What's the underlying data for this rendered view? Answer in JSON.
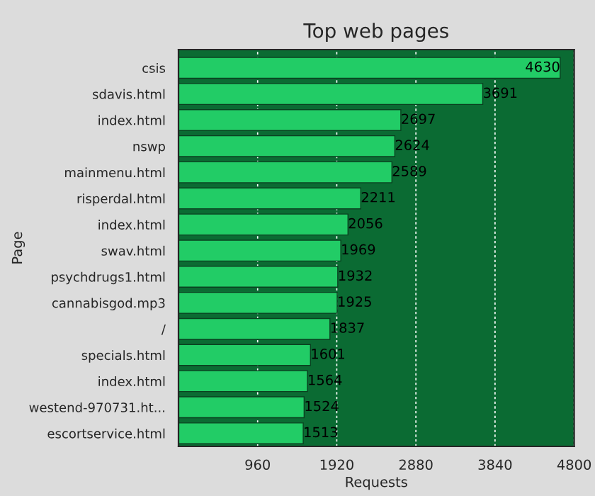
{
  "chart_data": {
    "type": "bar",
    "orientation": "horizontal",
    "title": "Top web pages",
    "xlabel": "Requests",
    "ylabel": "Page",
    "categories": [
      "csis",
      "sdavis.html",
      "index.html",
      "nswp",
      "mainmenu.html",
      "risperdal.html",
      "index.html",
      "swav.html",
      "psychdrugs1.html",
      "cannabisgod.mp3",
      "/",
      "specials.html",
      "index.html",
      "westend-970731.ht...",
      "escortservice.html"
    ],
    "values": [
      4630,
      3691,
      2697,
      2624,
      2589,
      2211,
      2056,
      1969,
      1932,
      1925,
      1837,
      1601,
      1564,
      1524,
      1513
    ],
    "color": "#22cc66",
    "data_labels": true,
    "xlim": [
      0,
      4800
    ],
    "xticks": [
      960,
      1920,
      2880,
      3840,
      4800
    ],
    "grid": "x"
  }
}
